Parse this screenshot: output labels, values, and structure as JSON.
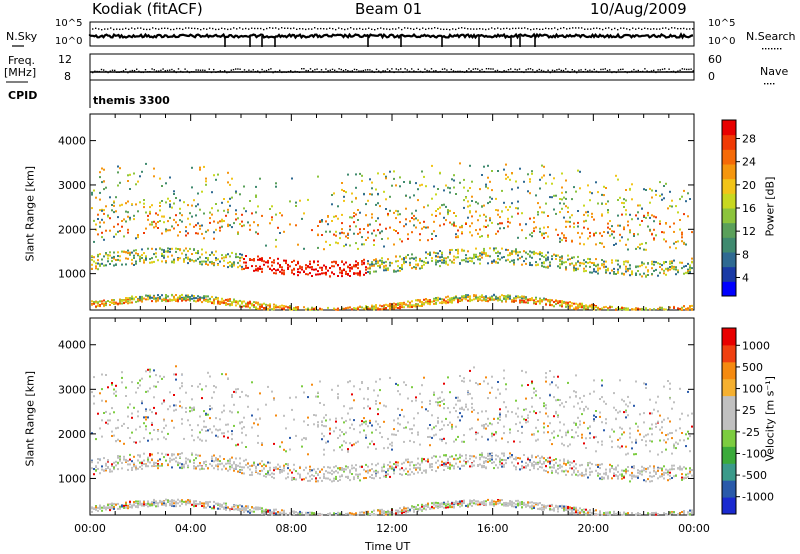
{
  "header": {
    "station": "Kodiak (fitACF)",
    "beam": "Beam 01",
    "date": "10/Aug/2009"
  },
  "top_panels": {
    "nsky_label": "N.Sky",
    "nsky_ticks": [
      "10^5",
      "10^0"
    ],
    "nsearch_label": "N.Search",
    "nsearch_ticks": [
      "10^5",
      "10^0"
    ],
    "freq_label_1": "Freq.",
    "freq_label_2": "[MHz]",
    "freq_ticks": [
      "12",
      "8"
    ],
    "nave_label": "Nave",
    "nave_ticks": [
      "60",
      "0"
    ],
    "cpid_label": "CPID",
    "cpid_value": "themis 3300"
  },
  "chart_data": [
    {
      "type": "heatmap",
      "name": "power",
      "ylabel": "Slant Range [km]",
      "yticks": [
        "4000",
        "3000",
        "2000",
        "1000"
      ],
      "ylim": [
        180,
        4600
      ],
      "xticks": [
        "00:00",
        "04:00",
        "08:00",
        "12:00",
        "16:00",
        "20:00",
        "00:00"
      ],
      "xlim_hours": [
        0,
        24
      ],
      "colorbar": {
        "label": "Power [dB]",
        "ticks": [
          "28",
          "24",
          "20",
          "16",
          "12",
          "8",
          "4"
        ],
        "colors": [
          "#0000ff",
          "#1a3aa5",
          "#2f6a92",
          "#3f8a6f",
          "#5aa05a",
          "#8cc43c",
          "#c8d820",
          "#f2c418",
          "#f5960e",
          "#f56a08",
          "#f03a05",
          "#e80000"
        ]
      }
    },
    {
      "type": "heatmap",
      "name": "velocity",
      "ylabel": "Slant Range [km]",
      "yticks": [
        "4000",
        "3000",
        "2000",
        "1000"
      ],
      "ylim": [
        180,
        4600
      ],
      "xticks": [
        "00:00",
        "04:00",
        "08:00",
        "12:00",
        "16:00",
        "20:00",
        "00:00"
      ],
      "xlabel": "Time UT",
      "colorbar": {
        "label": "Velocity [m s⁻¹]",
        "ticks": [
          "1000",
          "500",
          "100",
          "25",
          "-25",
          "-100",
          "-500",
          "-1000"
        ],
        "colors": [
          "#e80000",
          "#f04010",
          "#f58a10",
          "#f5b030",
          "#c0c0c0",
          "#c0c0c0",
          "#7ccc40",
          "#3aaa3a",
          "#3a9a8a",
          "#2a5aaa",
          "#1a2ad0"
        ]
      }
    }
  ]
}
